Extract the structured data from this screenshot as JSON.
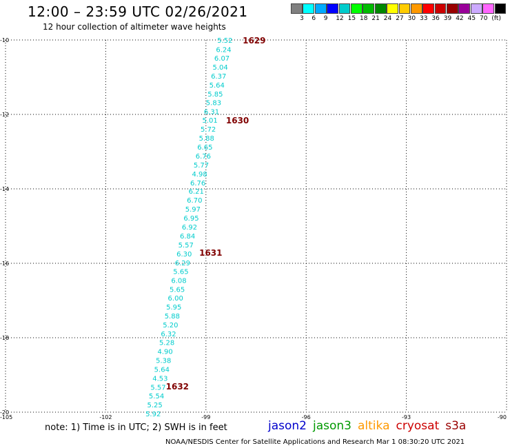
{
  "header": {
    "title": "12:00 – 23:59 UTC 02/26/2021",
    "subtitle": "12 hour collection of altimeter wave heights"
  },
  "colorbar": {
    "colors": [
      "#808080",
      "#00ffff",
      "#00aaff",
      "#0000ff",
      "#00cccc",
      "#00ff00",
      "#00bb00",
      "#008800",
      "#ffff00",
      "#ffcc00",
      "#ff9900",
      "#ff0000",
      "#cc0000",
      "#990000",
      "#990099",
      "#ccaaff",
      "#ff66ff",
      "#000000"
    ],
    "labels": [
      "3",
      "6",
      "9",
      "12",
      "15",
      "18",
      "21",
      "24",
      "27",
      "30",
      "33",
      "36",
      "39",
      "42",
      "45",
      "70",
      "(ft)"
    ]
  },
  "chart_data": {
    "type": "scatter",
    "title": "12:00 – 23:59 UTC 02/26/2021",
    "subtitle": "12 hour collection of altimeter wave heights",
    "xlim": [
      -105,
      -90
    ],
    "ylim": [
      -20,
      -10
    ],
    "x_ticks": [
      "-105",
      "-102",
      "-99",
      "-96",
      "-93",
      "-90"
    ],
    "y_ticks": [
      "-10",
      "-12",
      "-14",
      "-16",
      "-18",
      "-20"
    ],
    "grid": "dotted",
    "point_color": "#00cccc",
    "series": [
      {
        "points": [
          {
            "lon": -98.66,
            "lat": -10.0,
            "swh": "5.52"
          },
          {
            "lon": -98.7,
            "lat": -10.25,
            "swh": "6.24"
          },
          {
            "lon": -98.75,
            "lat": -10.48,
            "swh": "6.07"
          },
          {
            "lon": -98.8,
            "lat": -10.72,
            "swh": "5.04"
          },
          {
            "lon": -98.85,
            "lat": -10.96,
            "swh": "6.37"
          },
          {
            "lon": -98.9,
            "lat": -11.2,
            "swh": "5.64"
          },
          {
            "lon": -98.95,
            "lat": -11.44,
            "swh": "5.85"
          },
          {
            "lon": -99.0,
            "lat": -11.68,
            "swh": "5.83"
          },
          {
            "lon": -99.06,
            "lat": -11.92,
            "swh": "6.31"
          },
          {
            "lon": -99.11,
            "lat": -12.15,
            "swh": "5.01"
          },
          {
            "lon": -99.16,
            "lat": -12.39,
            "swh": "5.72"
          },
          {
            "lon": -99.21,
            "lat": -12.63,
            "swh": "5.88"
          },
          {
            "lon": -99.26,
            "lat": -12.87,
            "swh": "6.65"
          },
          {
            "lon": -99.31,
            "lat": -13.11,
            "swh": "6.76"
          },
          {
            "lon": -99.37,
            "lat": -13.35,
            "swh": "5.77"
          },
          {
            "lon": -99.42,
            "lat": -13.59,
            "swh": "4.98"
          },
          {
            "lon": -99.47,
            "lat": -13.83,
            "swh": "6.76"
          },
          {
            "lon": -99.52,
            "lat": -14.06,
            "swh": "6.21"
          },
          {
            "lon": -99.57,
            "lat": -14.3,
            "swh": "6.70"
          },
          {
            "lon": -99.62,
            "lat": -14.54,
            "swh": "5.97"
          },
          {
            "lon": -99.67,
            "lat": -14.78,
            "swh": "6.95"
          },
          {
            "lon": -99.72,
            "lat": -15.02,
            "swh": "6.92"
          },
          {
            "lon": -99.78,
            "lat": -15.26,
            "swh": "6.84"
          },
          {
            "lon": -99.83,
            "lat": -15.5,
            "swh": "5.57"
          },
          {
            "lon": -99.88,
            "lat": -15.74,
            "swh": "6.30"
          },
          {
            "lon": -99.93,
            "lat": -15.98,
            "swh": "6.29"
          },
          {
            "lon": -99.98,
            "lat": -16.21,
            "swh": "5.65"
          },
          {
            "lon": -100.04,
            "lat": -16.45,
            "swh": "6.08"
          },
          {
            "lon": -100.09,
            "lat": -16.69,
            "swh": "5.65"
          },
          {
            "lon": -100.14,
            "lat": -16.93,
            "swh": "6.00"
          },
          {
            "lon": -100.19,
            "lat": -17.17,
            "swh": "5.95"
          },
          {
            "lon": -100.24,
            "lat": -17.41,
            "swh": "5.88"
          },
          {
            "lon": -100.29,
            "lat": -17.65,
            "swh": "5.20"
          },
          {
            "lon": -100.35,
            "lat": -17.89,
            "swh": "6.32"
          },
          {
            "lon": -100.4,
            "lat": -18.12,
            "swh": "5.28"
          },
          {
            "lon": -100.45,
            "lat": -18.36,
            "swh": "4.90"
          },
          {
            "lon": -100.5,
            "lat": -18.6,
            "swh": "5.38"
          },
          {
            "lon": -100.55,
            "lat": -18.84,
            "swh": "5.64"
          },
          {
            "lon": -100.6,
            "lat": -19.08,
            "swh": "4.53"
          },
          {
            "lon": -100.66,
            "lat": -19.32,
            "swh": "5.57"
          },
          {
            "lon": -100.71,
            "lat": -19.56,
            "swh": "5.54"
          },
          {
            "lon": -100.76,
            "lat": -19.8,
            "swh": "5.25"
          },
          {
            "lon": -100.81,
            "lat": -20.04,
            "swh": "5.92"
          }
        ]
      }
    ],
    "annotations": [
      {
        "text": "1629",
        "lon": -97.9,
        "lat": -10.0,
        "color": "#800000"
      },
      {
        "text": "1630",
        "lon": -98.4,
        "lat": -12.15,
        "color": "#800000"
      },
      {
        "text": "1631",
        "lon": -99.2,
        "lat": -15.7,
        "color": "#800000"
      },
      {
        "text": "1632",
        "lon": -100.2,
        "lat": -19.3,
        "color": "#800000"
      }
    ]
  },
  "footer": {
    "note": "note: 1) Time is in UTC; 2) SWH is in feet",
    "legend": [
      {
        "label": "jason2",
        "color": "#0000cc"
      },
      {
        "label": "jason3",
        "color": "#009900"
      },
      {
        "label": "altika",
        "color": "#ff9900"
      },
      {
        "label": "cryosat",
        "color": "#cc0000"
      },
      {
        "label": "s3a",
        "color": "#990000"
      }
    ],
    "credit": "NOAA/NESDIS Center for Satellite Applications and Research    Mar  1 08:30:20 UTC 2021"
  }
}
